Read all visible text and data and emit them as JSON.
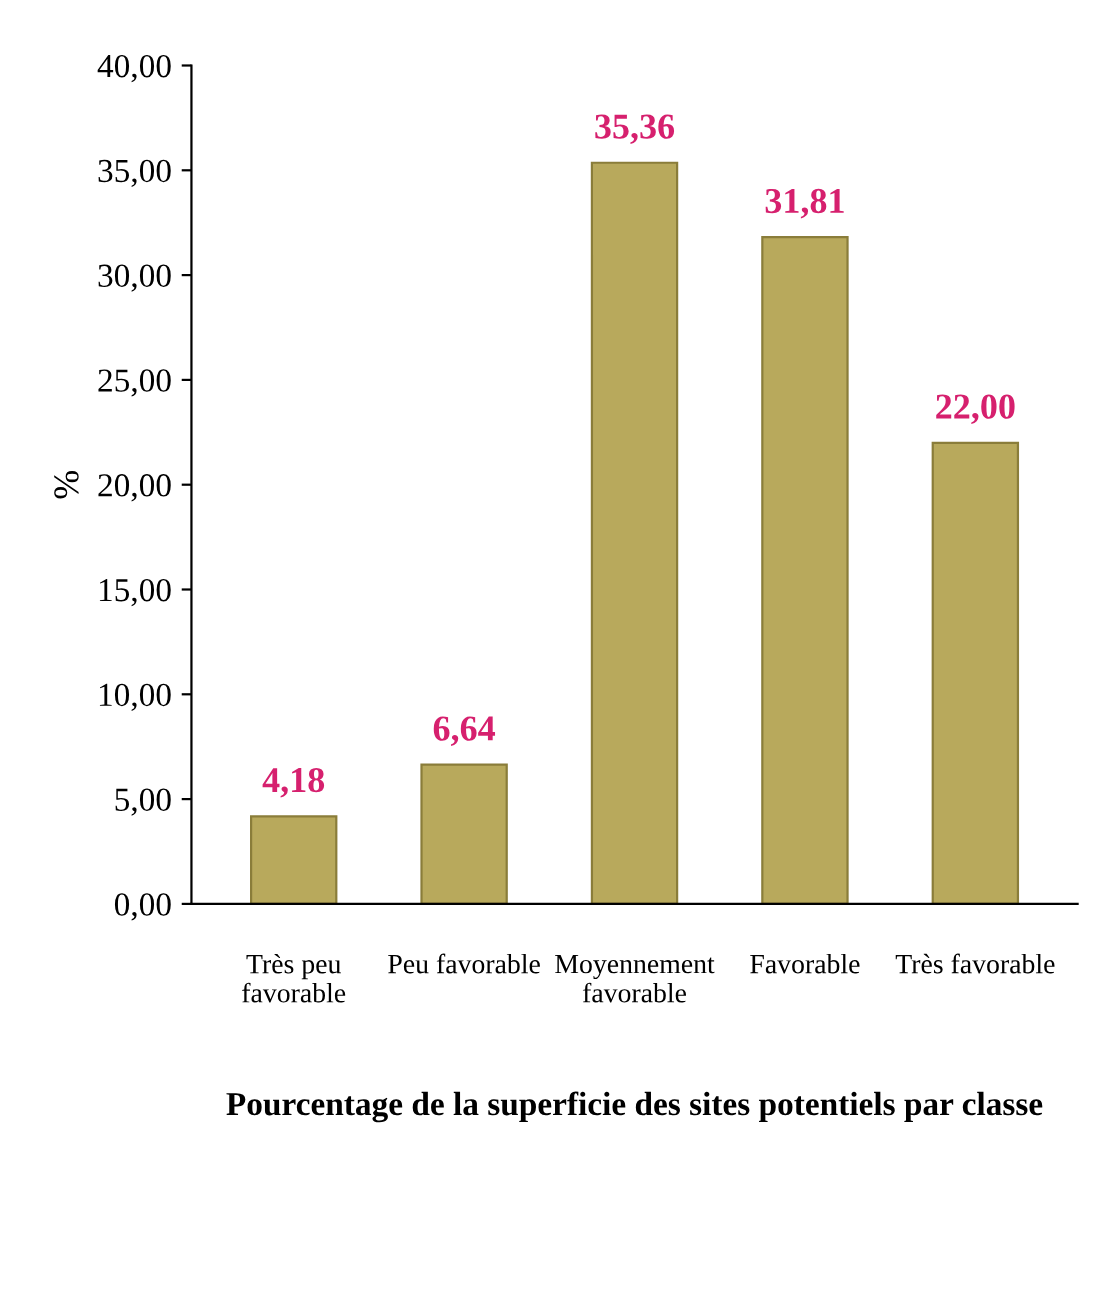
{
  "chart_data": {
    "type": "bar",
    "xlabel": "Pourcentage de la superficie des sites potentiels par classe",
    "ylabel": "%",
    "categories": [
      "Très peu\nfavorable",
      "Peu favorable",
      "Moyennement\nfavorable",
      "Favorable",
      "Très favorable"
    ],
    "values": [
      4.18,
      6.64,
      35.36,
      31.81,
      22.0
    ],
    "value_labels": [
      "4,18",
      "6,64",
      "35,36",
      "31,81",
      "22,00"
    ],
    "color": "#b8a95c",
    "ylim": [
      0,
      40
    ],
    "yticks": [
      {
        "value": 0,
        "label": "0,00"
      },
      {
        "value": 5,
        "label": "5,00"
      },
      {
        "value": 10,
        "label": "10,00"
      },
      {
        "value": 15,
        "label": "15,00"
      },
      {
        "value": 20,
        "label": "20,00"
      },
      {
        "value": 25,
        "label": "25,00"
      },
      {
        "value": 30,
        "label": "30,00"
      },
      {
        "value": 35,
        "label": "35,00"
      },
      {
        "value": 40,
        "label": "40,00"
      }
    ],
    "grid": false,
    "legend": false
  }
}
